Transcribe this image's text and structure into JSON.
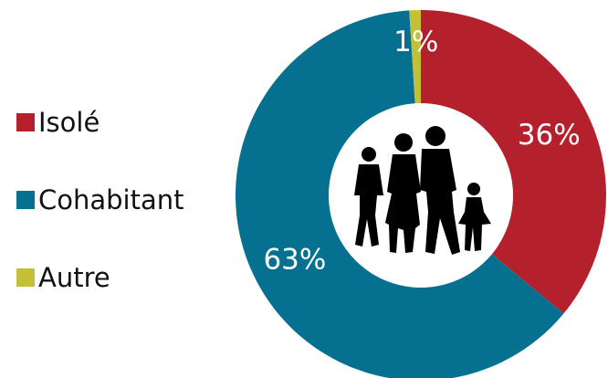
{
  "chart_data": {
    "type": "pie",
    "style": "donut",
    "categories": [
      "Isolé",
      "Cohabitant",
      "Autre"
    ],
    "values": [
      36,
      63,
      1
    ],
    "labels": [
      "36%",
      "63%",
      "1%"
    ],
    "colors": [
      "#b5202d",
      "#05708f",
      "#c3c038"
    ],
    "legend": "left",
    "center_icon": "family-silhouette-icon"
  }
}
